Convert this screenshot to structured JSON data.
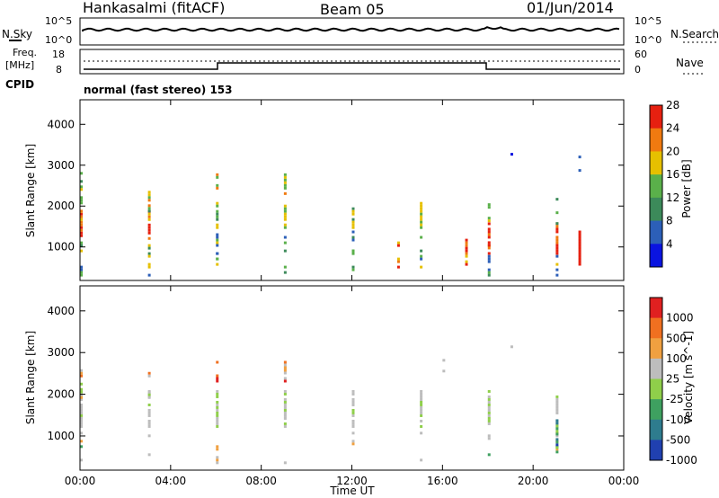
{
  "header": {
    "station": "Hankasalmi (fitACF)",
    "beam": "Beam 05",
    "date": "01/Jun/2014"
  },
  "noise_panel": {
    "left_label": "N.Sky",
    "right_label": "N.Search",
    "ticks_left": [
      "10^5",
      "10^0"
    ],
    "ticks_right": [
      "10^5",
      "10^0"
    ]
  },
  "freq_panel": {
    "left_label_1": "Freq.",
    "left_label_2": "[MHz]",
    "ticks_left": [
      "18",
      "8"
    ],
    "ticks_right": [
      "60",
      "0"
    ],
    "right_label": "Nave"
  },
  "cpid": {
    "label": "CPID",
    "value": "normal (fast stereo) 153"
  },
  "time_axis": {
    "label": "Time UT",
    "ticks": [
      "00:00",
      "04:00",
      "08:00",
      "12:00",
      "16:00",
      "20:00",
      "00:00"
    ]
  },
  "chart_data": [
    {
      "type": "heatmap",
      "title": "",
      "ylabel": "Slant Range [km]",
      "xlabel": "Time UT",
      "ylim": [
        180,
        4600
      ],
      "yticks": [
        "1000",
        "2000",
        "3000",
        "4000"
      ],
      "xlim_hours": [
        0,
        24
      ],
      "colorbar": {
        "label": "Power [dB]",
        "ticks": [
          "4",
          "8",
          "12",
          "16",
          "20",
          "24",
          "28"
        ],
        "colors": [
          "#0a14e0",
          "#2c5fb8",
          "#3c8a5a",
          "#5ab04a",
          "#e6c000",
          "#f07a10",
          "#e62010"
        ]
      }
    },
    {
      "type": "heatmap",
      "title": "",
      "ylabel": "Slant Range [km]",
      "xlabel": "Time UT",
      "ylim": [
        180,
        4600
      ],
      "yticks": [
        "1000",
        "2000",
        "3000",
        "4000"
      ],
      "xlim_hours": [
        0,
        24
      ],
      "colorbar": {
        "label": "Velocity [m s^-1]",
        "ticks": [
          "1000",
          "500",
          "100",
          "25",
          "-25",
          "-100",
          "-500",
          "-1000"
        ],
        "colors": [
          "#2040b0",
          "#2e7c8e",
          "#3ea060",
          "#8fcf4a",
          "#bdbdbd",
          "#f0a040",
          "#f07020",
          "#e02020"
        ]
      }
    }
  ]
}
